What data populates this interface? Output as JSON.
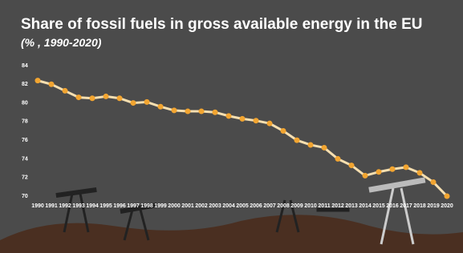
{
  "chart_data": {
    "type": "line",
    "title": "Share of fossil fuels in gross available energy in the EU",
    "subtitle": "(% , 1990-2020)",
    "categories": [
      "1990",
      "1991",
      "1992",
      "1993",
      "1994",
      "1995",
      "1996",
      "1997",
      "1998",
      "1999",
      "2000",
      "2001",
      "2002",
      "2003",
      "2004",
      "2005",
      "2006",
      "2007",
      "2008",
      "2009",
      "2010",
      "2011",
      "2012",
      "2013",
      "2014",
      "2015",
      "2016",
      "2017",
      "2018",
      "2019",
      "2020"
    ],
    "values": [
      82.4,
      82.0,
      81.3,
      80.6,
      80.5,
      80.7,
      80.5,
      80.0,
      80.1,
      79.6,
      79.2,
      79.1,
      79.1,
      79.0,
      78.6,
      78.3,
      78.1,
      77.8,
      77.0,
      76.0,
      75.5,
      75.2,
      74.0,
      73.3,
      72.2,
      72.6,
      72.9,
      73.1,
      72.5,
      71.5,
      70.0
    ],
    "color": "#f6dfb0",
    "marker_color": "#f2a531",
    "ylim": [
      70,
      84
    ],
    "yticks": [
      70,
      72,
      74,
      76,
      78,
      80,
      82,
      84
    ],
    "grid": false
  }
}
